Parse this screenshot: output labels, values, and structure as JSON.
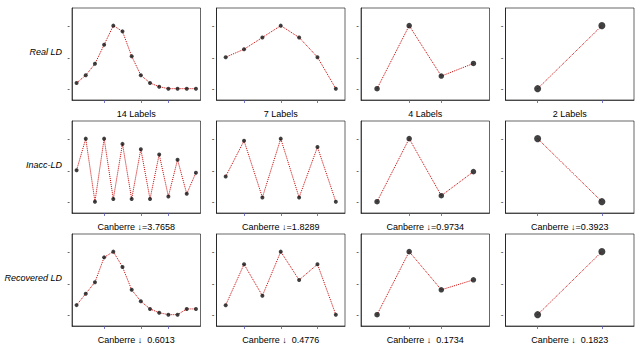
{
  "chart_data": [
    {
      "type": "line",
      "annotations": [
        "Real LD"
      ],
      "xlabel": "14 Labels",
      "x": [
        0,
        1,
        2,
        3,
        4,
        5,
        6,
        7,
        8,
        9,
        10,
        11,
        12,
        13
      ],
      "series": [
        {
          "type": "line",
          "color": "#cc0000",
          "line_style": "dotted",
          "values": [
            0.068,
            0.072,
            0.078,
            0.088,
            0.098,
            0.095,
            0.082,
            0.072,
            0.068,
            0.066,
            0.065,
            0.065,
            0.065,
            0.065
          ]
        },
        {
          "type": "scatter",
          "color": "#111111",
          "marker": "circle",
          "values": [
            0.068,
            0.072,
            0.078,
            0.088,
            0.098,
            0.095,
            0.082,
            0.072,
            0.068,
            0.066,
            0.065,
            0.065,
            0.065,
            0.065
          ]
        }
      ],
      "xlim": [
        -0.5,
        13.5
      ],
      "xticks": [
        3,
        7,
        10
      ],
      "ylim": [
        0.05906,
        0.10724
      ],
      "yticks": [
        {
          "value": 0.065,
          "label": "-"
        },
        {
          "value": 0.0815,
          "label": "-"
        },
        {
          "value": 0.098,
          "label": "-"
        }
      ],
      "grid": false,
      "tick_labels": "y"
    },
    {
      "type": "line",
      "xlabel": "7 Labels",
      "x": [
        0,
        1,
        2,
        3,
        4,
        5,
        6
      ],
      "series": [
        {
          "type": "line",
          "color": "#cc0000",
          "line_style": "dotted",
          "values": [
            0.13,
            0.132,
            0.135,
            0.138,
            0.135,
            0.13,
            0.122
          ]
        },
        {
          "type": "scatter",
          "color": "#111111",
          "marker": "circle",
          "values": [
            0.13,
            0.132,
            0.135,
            0.138,
            0.135,
            0.13,
            0.122
          ]
        }
      ],
      "xlim": [
        -0.5,
        6.5
      ],
      "xticks": [
        1,
        3,
        5
      ],
      "ylim": [
        0.11912,
        0.14248
      ],
      "yticks": [
        {
          "value": 0.122,
          "label": "-"
        },
        {
          "value": 0.13,
          "label": "-"
        },
        {
          "value": 0.138,
          "label": "-"
        }
      ],
      "grid": false,
      "tick_labels": "y"
    },
    {
      "type": "line",
      "xlabel": "4 Labels",
      "x": [
        0,
        1,
        2,
        3
      ],
      "series": [
        {
          "type": "line",
          "color": "#cc0000",
          "line_style": "dotted",
          "values": [
            0.18,
            0.38,
            0.22,
            0.26
          ]
        },
        {
          "type": "scatter",
          "color": "#111111",
          "marker": "circle",
          "values": [
            0.18,
            0.38,
            0.22,
            0.26
          ]
        }
      ],
      "xlim": [
        -0.5,
        3.5
      ],
      "xticks": [
        1,
        2
      ],
      "ylim": [
        0.144,
        0.436
      ],
      "yticks": [
        {
          "value": 0.18,
          "label": "-"
        },
        {
          "value": 0.28,
          "label": "-"
        },
        {
          "value": 0.38,
          "label": "-"
        }
      ],
      "grid": false,
      "tick_labels": "y"
    },
    {
      "type": "line",
      "xlabel": "2 Labels",
      "x": [
        0,
        1
      ],
      "series": [
        {
          "type": "line",
          "color": "#cc0000",
          "line_style": "dotted",
          "values": [
            0.22,
            0.88
          ]
        },
        {
          "type": "scatter",
          "color": "#111111",
          "marker": "circle",
          "values": [
            0.22,
            0.88
          ]
        }
      ],
      "xlim": [
        -0.5,
        1.5
      ],
      "xticks": [
        0,
        1
      ],
      "ylim": [
        0.1012,
        1.0648
      ],
      "yticks": [
        {
          "value": 0.22,
          "label": "-"
        },
        {
          "value": 0.55,
          "label": "-"
        },
        {
          "value": 0.88,
          "label": "-"
        }
      ],
      "grid": false,
      "tick_labels": "y"
    },
    {
      "type": "line",
      "annotations": [
        "Inacc-LD"
      ],
      "xlabel": "Canberre ↓=3.7658",
      "x": [
        0,
        1,
        2,
        3,
        4,
        5,
        6,
        7,
        8,
        9,
        10,
        11,
        12,
        13
      ],
      "series": [
        {
          "type": "line",
          "color": "#cc0000",
          "line_style": "dotted",
          "values": [
            0.18,
            0.3,
            0.06,
            0.3,
            0.07,
            0.28,
            0.07,
            0.26,
            0.07,
            0.24,
            0.08,
            0.22,
            0.09,
            0.17
          ]
        },
        {
          "type": "scatter",
          "color": "#111111",
          "marker": "circle",
          "values": [
            0.18,
            0.3,
            0.06,
            0.3,
            0.07,
            0.28,
            0.07,
            0.26,
            0.07,
            0.24,
            0.08,
            0.22,
            0.09,
            0.17
          ]
        }
      ],
      "xlim": [
        -0.5,
        13.5
      ],
      "xticks": [
        3,
        7,
        10
      ],
      "ylim": [
        0.0168,
        0.3672
      ],
      "yticks": [
        {
          "value": 0.06,
          "label": "-"
        },
        {
          "value": 0.18,
          "label": "-"
        },
        {
          "value": 0.3,
          "label": "-"
        }
      ],
      "grid": false,
      "tick_labels": "y"
    },
    {
      "type": "line",
      "xlabel": "Canberre ↓=1.8289",
      "x": [
        0,
        1,
        2,
        3,
        4,
        5,
        6
      ],
      "series": [
        {
          "type": "line",
          "color": "#cc0000",
          "line_style": "dotted",
          "values": [
            0.16,
            0.33,
            0.06,
            0.34,
            0.06,
            0.3,
            0.04
          ]
        },
        {
          "type": "scatter",
          "color": "#111111",
          "marker": "circle",
          "values": [
            0.16,
            0.33,
            0.06,
            0.34,
            0.06,
            0.3,
            0.04
          ]
        }
      ],
      "xlim": [
        -0.5,
        6.5
      ],
      "xticks": [
        1,
        3,
        5
      ],
      "ylim": [
        -0.014,
        0.424
      ],
      "yticks": [
        {
          "value": 0.04,
          "label": "-"
        },
        {
          "value": 0.19,
          "label": "-"
        },
        {
          "value": 0.34,
          "label": "-"
        }
      ],
      "grid": false,
      "tick_labels": "y"
    },
    {
      "type": "line",
      "xlabel": "Canberre ↓=0.9734",
      "x": [
        0,
        1,
        2,
        3
      ],
      "series": [
        {
          "type": "line",
          "color": "#cc0000",
          "line_style": "dotted",
          "values": [
            0.06,
            0.48,
            0.1,
            0.26
          ]
        },
        {
          "type": "scatter",
          "color": "#111111",
          "marker": "circle",
          "values": [
            0.06,
            0.48,
            0.1,
            0.26
          ]
        }
      ],
      "xlim": [
        -0.5,
        3.5
      ],
      "xticks": [
        1,
        2
      ],
      "ylim": [
        -0.0156,
        0.5976
      ],
      "yticks": [
        {
          "value": 0.06,
          "label": "-"
        },
        {
          "value": 0.27,
          "label": "-"
        },
        {
          "value": 0.48,
          "label": "-"
        }
      ],
      "grid": false,
      "tick_labels": "y"
    },
    {
      "type": "line",
      "xlabel": "Canberre ↓=0.3923",
      "x": [
        0,
        1
      ],
      "series": [
        {
          "type": "line",
          "color": "#cc0000",
          "line_style": "dotted",
          "values": [
            0.35,
            0.13
          ]
        },
        {
          "type": "scatter",
          "color": "#111111",
          "marker": "circle",
          "values": [
            0.35,
            0.13
          ]
        }
      ],
      "xlim": [
        -0.5,
        1.5
      ],
      "xticks": [
        0,
        1
      ],
      "ylim": [
        0.0904,
        0.4116
      ],
      "yticks": [
        {
          "value": 0.13,
          "label": "-"
        },
        {
          "value": 0.24,
          "label": "-"
        },
        {
          "value": 0.35,
          "label": "-"
        }
      ],
      "grid": false,
      "tick_labels": "y"
    },
    {
      "type": "line",
      "annotations": [
        "Recovered LD"
      ],
      "xlabel": "Canberre ↓  0.6013",
      "x": [
        0,
        1,
        2,
        3,
        4,
        5,
        6,
        7,
        8,
        9,
        10,
        11,
        12,
        13
      ],
      "series": [
        {
          "type": "line",
          "color": "#cc0000",
          "line_style": "dotted",
          "values": [
            0.07,
            0.076,
            0.082,
            0.095,
            0.098,
            0.09,
            0.078,
            0.072,
            0.068,
            0.066,
            0.065,
            0.065,
            0.068,
            0.068
          ]
        },
        {
          "type": "scatter",
          "color": "#111111",
          "marker": "circle",
          "values": [
            0.07,
            0.076,
            0.082,
            0.095,
            0.098,
            0.09,
            0.078,
            0.072,
            0.068,
            0.066,
            0.065,
            0.065,
            0.068,
            0.068
          ]
        }
      ],
      "xlim": [
        -0.5,
        13.5
      ],
      "xticks": [
        3,
        7,
        10
      ],
      "ylim": [
        0.05906,
        0.10724
      ],
      "yticks": [
        {
          "value": 0.065,
          "label": "-"
        },
        {
          "value": 0.0815,
          "label": "-"
        },
        {
          "value": 0.098,
          "label": "-"
        }
      ],
      "grid": false,
      "tick_labels": "y"
    },
    {
      "type": "line",
      "xlabel": "Canberre ↓  0.4776",
      "x": [
        0,
        1,
        2,
        3,
        4,
        5,
        6
      ],
      "series": [
        {
          "type": "line",
          "color": "#cc0000",
          "line_style": "dotted",
          "values": [
            0.135,
            0.148,
            0.138,
            0.152,
            0.143,
            0.148,
            0.132
          ]
        },
        {
          "type": "scatter",
          "color": "#111111",
          "marker": "circle",
          "values": [
            0.135,
            0.148,
            0.138,
            0.152,
            0.143,
            0.148,
            0.132
          ]
        }
      ],
      "xlim": [
        -0.5,
        6.5
      ],
      "xticks": [
        1,
        3,
        5
      ],
      "ylim": [
        0.1284,
        0.1576
      ],
      "yticks": [
        {
          "value": 0.132,
          "label": "-"
        },
        {
          "value": 0.142,
          "label": "-"
        },
        {
          "value": 0.152,
          "label": "-"
        }
      ],
      "grid": false,
      "tick_labels": "y"
    },
    {
      "type": "line",
      "xlabel": "Canberre ↓  0.1734",
      "x": [
        0,
        1,
        2,
        3
      ],
      "series": [
        {
          "type": "line",
          "color": "#cc0000",
          "line_style": "dotted",
          "values": [
            0.04,
            0.42,
            0.19,
            0.25
          ]
        },
        {
          "type": "scatter",
          "color": "#111111",
          "marker": "circle",
          "values": [
            0.04,
            0.42,
            0.19,
            0.25
          ]
        }
      ],
      "xlim": [
        -0.5,
        3.5
      ],
      "xticks": [
        1,
        2
      ],
      "ylim": [
        -0.0284,
        0.5264
      ],
      "yticks": [
        {
          "value": 0.04,
          "label": "-"
        },
        {
          "value": 0.23,
          "label": "-"
        },
        {
          "value": 0.42,
          "label": "-"
        }
      ],
      "grid": false,
      "tick_labels": "y"
    },
    {
      "type": "line",
      "xlabel": "Canberre ↓  0.1823",
      "x": [
        0,
        1
      ],
      "series": [
        {
          "type": "line",
          "color": "#cc0000",
          "line_style": "dotted",
          "values": [
            0.17,
            0.22
          ]
        },
        {
          "type": "scatter",
          "color": "#111111",
          "marker": "circle",
          "values": [
            0.17,
            0.22
          ]
        }
      ],
      "xlim": [
        -0.5,
        1.5
      ],
      "xticks": [
        0,
        1
      ],
      "ylim": [
        0.161,
        0.234
      ],
      "yticks": [
        {
          "value": 0.17,
          "label": "-"
        },
        {
          "value": 0.195,
          "label": "-"
        },
        {
          "value": 0.22,
          "label": "-"
        }
      ],
      "grid": false,
      "tick_labels": "y"
    }
  ]
}
